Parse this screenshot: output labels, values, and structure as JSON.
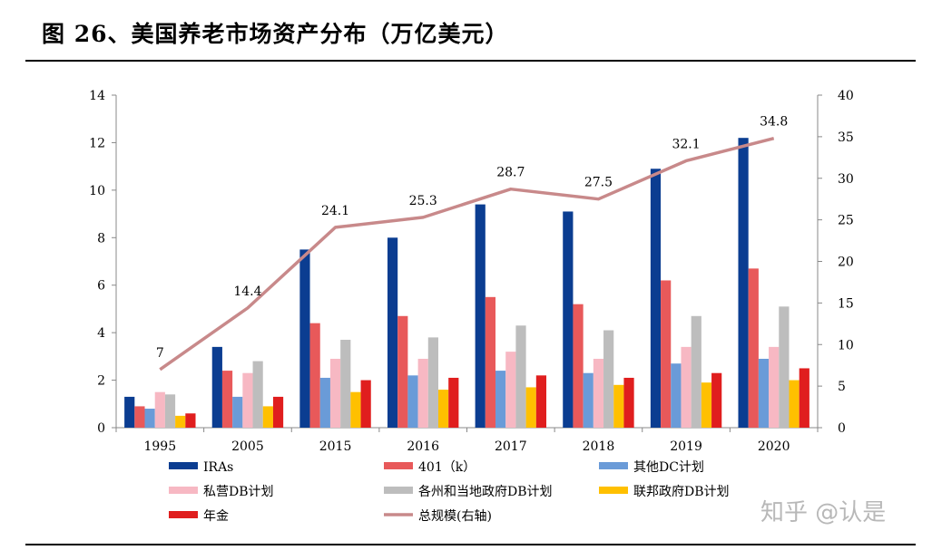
{
  "page": {
    "title": "图 26、美国养老市场资产分布（万亿美元）",
    "watermark": "知乎 @认是"
  },
  "chart_data": {
    "type": "bar+line",
    "categories": [
      "1995",
      "2005",
      "2015",
      "2016",
      "2017",
      "2018",
      "2019",
      "2020"
    ],
    "series": [
      {
        "name": "IRAs",
        "color": "#0b3d91",
        "values": [
          1.3,
          3.4,
          7.5,
          8.0,
          9.4,
          9.1,
          10.9,
          12.2
        ]
      },
      {
        "name": "401（k）",
        "color": "#e8595a",
        "values": [
          0.9,
          2.4,
          4.4,
          4.7,
          5.5,
          5.2,
          6.2,
          6.7
        ]
      },
      {
        "name": "其他DC计划",
        "color": "#6a9bd8",
        "values": [
          0.8,
          1.3,
          2.1,
          2.2,
          2.4,
          2.3,
          2.7,
          2.9
        ]
      },
      {
        "name": "私营DB计划",
        "color": "#f7b8c3",
        "values": [
          1.5,
          2.3,
          2.9,
          2.9,
          3.2,
          2.9,
          3.4,
          3.4
        ]
      },
      {
        "name": "各州和当地政府DB计划",
        "color": "#bdbdbd",
        "values": [
          1.4,
          2.8,
          3.7,
          3.8,
          4.3,
          4.1,
          4.7,
          5.1
        ]
      },
      {
        "name": "联邦政府DB计划",
        "color": "#ffc000",
        "values": [
          0.5,
          0.9,
          1.5,
          1.6,
          1.7,
          1.8,
          1.9,
          2.0
        ]
      },
      {
        "name": "年金",
        "color": "#e01e1e",
        "values": [
          0.6,
          1.3,
          2.0,
          2.1,
          2.2,
          2.1,
          2.3,
          2.5
        ]
      }
    ],
    "line": {
      "name": "总规模(右轴)",
      "color": "#c8898a",
      "axis": "right",
      "values": [
        7,
        14.4,
        24.1,
        25.3,
        28.7,
        27.5,
        32.1,
        34.8
      ],
      "labels": [
        "7",
        "14.4",
        "24.1",
        "25.3",
        "28.7",
        "27.5",
        "32.1",
        "34.8"
      ]
    },
    "y_left": {
      "min": 0,
      "max": 14,
      "ticks": [
        "0",
        "2",
        "4",
        "6",
        "8",
        "10",
        "12",
        "14"
      ]
    },
    "y_right": {
      "min": 0,
      "max": 40,
      "ticks": [
        "0",
        "5",
        "10",
        "15",
        "20",
        "25",
        "30",
        "35",
        "40"
      ]
    },
    "legend_position": "bottom",
    "grid": false
  }
}
